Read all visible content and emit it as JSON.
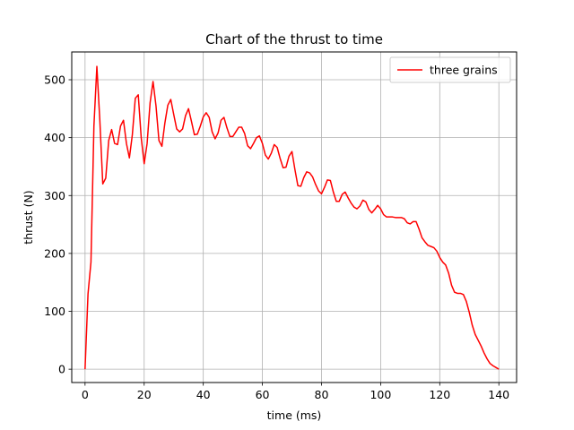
{
  "chart_data": {
    "type": "line",
    "title": "Chart of the thrust to time",
    "xlabel": "time (ms)",
    "ylabel": "thrust (N)",
    "xlim": [
      -4.5,
      146
    ],
    "ylim": [
      -23,
      548
    ],
    "xticks": [
      0,
      20,
      40,
      60,
      80,
      100,
      120,
      140
    ],
    "yticks": [
      0,
      100,
      200,
      300,
      400,
      500
    ],
    "grid": true,
    "legend_position": "top-right",
    "series": [
      {
        "name": "three grains",
        "color": "#ff0000",
        "x": [
          0,
          1,
          2,
          3,
          4,
          5,
          6,
          7,
          8,
          9,
          10,
          11,
          12,
          13,
          14,
          15,
          16,
          17,
          18,
          19,
          20,
          21,
          22,
          23,
          24,
          25,
          26,
          27,
          28,
          29,
          30,
          31,
          32,
          33,
          34,
          35,
          36,
          37,
          38,
          39,
          40,
          41,
          42,
          43,
          44,
          45,
          46,
          47,
          48,
          49,
          50,
          51,
          52,
          53,
          54,
          55,
          56,
          57,
          58,
          59,
          60,
          61,
          62,
          63,
          64,
          65,
          66,
          67,
          68,
          69,
          70,
          71,
          72,
          73,
          74,
          75,
          76,
          77,
          78,
          79,
          80,
          81,
          82,
          83,
          84,
          85,
          86,
          87,
          88,
          89,
          90,
          91,
          92,
          93,
          94,
          95,
          96,
          97,
          98,
          99,
          100,
          101,
          102,
          103,
          104,
          105,
          106,
          107,
          108,
          109,
          110,
          111,
          112,
          113,
          114,
          115,
          116,
          117,
          118,
          119,
          120,
          121,
          122,
          123,
          124,
          125,
          126,
          127,
          128,
          129,
          130,
          131,
          132,
          133,
          134,
          135,
          136,
          137,
          138,
          139,
          140
        ],
        "values": [
          0,
          130,
          185,
          420,
          523,
          430,
          320,
          330,
          395,
          414,
          390,
          388,
          420,
          430,
          390,
          365,
          405,
          468,
          474,
          400,
          355,
          390,
          460,
          497,
          455,
          395,
          385,
          425,
          456,
          466,
          440,
          415,
          410,
          415,
          438,
          450,
          428,
          405,
          406,
          420,
          436,
          443,
          435,
          410,
          398,
          408,
          430,
          435,
          417,
          402,
          402,
          410,
          418,
          418,
          407,
          386,
          381,
          390,
          400,
          403,
          390,
          370,
          363,
          373,
          388,
          383,
          364,
          348,
          349,
          368,
          376,
          345,
          317,
          316,
          331,
          341,
          339,
          332,
          319,
          308,
          303,
          314,
          327,
          326,
          306,
          290,
          290,
          302,
          306,
          296,
          287,
          280,
          277,
          282,
          292,
          289,
          276,
          270,
          276,
          283,
          277,
          267,
          263,
          263,
          263,
          262,
          262,
          262,
          260,
          253,
          251,
          255,
          255,
          242,
          227,
          220,
          214,
          212,
          210,
          204,
          193,
          185,
          180,
          166,
          145,
          133,
          131,
          131,
          129,
          117,
          98,
          76,
          60,
          50,
          40,
          28,
          18,
          10,
          6,
          3,
          0
        ]
      }
    ]
  }
}
